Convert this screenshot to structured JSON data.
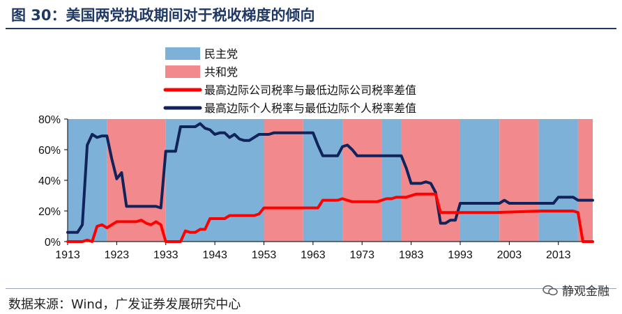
{
  "header": {
    "title": "图 30：美国两党执政期间对于税收梯度的倾向"
  },
  "footer": {
    "source": "数据来源：Wind，广发证券发展研究中心",
    "badge": "静观金融"
  },
  "colors": {
    "democrat": "#7eb1d8",
    "republican": "#f2898c",
    "corporate": "#ff0000",
    "personal": "#10235a",
    "title": "#1f3864"
  },
  "chart_data": {
    "type": "line",
    "title": "",
    "xlabel": "",
    "ylabel": "",
    "xlim": [
      1913,
      2020
    ],
    "ylim": [
      0,
      80
    ],
    "x_ticks": [
      1913,
      1923,
      1933,
      1943,
      1953,
      1963,
      1973,
      1983,
      1993,
      2003,
      2013
    ],
    "x_tick_labels": [
      "1913",
      "1923",
      "1933",
      "1943",
      "1953",
      "1963",
      "1973",
      "1983",
      "1993",
      "2003",
      "2013"
    ],
    "y_ticks": [
      0,
      20,
      40,
      60,
      80
    ],
    "y_tick_labels": [
      "0%",
      "20%",
      "40%",
      "60%",
      "80%"
    ],
    "legend": [
      {
        "label": "民主党",
        "type": "patch",
        "color": "#7eb1d8"
      },
      {
        "label": "共和党",
        "type": "patch",
        "color": "#f2898c"
      },
      {
        "label": "最高边际公司税率与最低边际公司税率差值",
        "type": "line",
        "color": "#ff0000"
      },
      {
        "label": "最高边际个人税率与最低边际个人税率差值",
        "type": "line",
        "color": "#10235a"
      }
    ],
    "periods": [
      {
        "party": "民主党",
        "start": 1913,
        "end": 1921
      },
      {
        "party": "共和党",
        "start": 1921,
        "end": 1933
      },
      {
        "party": "民主党",
        "start": 1933,
        "end": 1953
      },
      {
        "party": "共和党",
        "start": 1953,
        "end": 1961
      },
      {
        "party": "民主党",
        "start": 1961,
        "end": 1969
      },
      {
        "party": "共和党",
        "start": 1969,
        "end": 1977
      },
      {
        "party": "民主党",
        "start": 1977,
        "end": 1981
      },
      {
        "party": "共和党",
        "start": 1981,
        "end": 1993
      },
      {
        "party": "民主党",
        "start": 1993,
        "end": 2001
      },
      {
        "party": "共和党",
        "start": 2001,
        "end": 2009
      },
      {
        "party": "民主党",
        "start": 2009,
        "end": 2017
      },
      {
        "party": "共和党",
        "start": 2017,
        "end": 2020
      }
    ],
    "series": [
      {
        "name": "最高边际个人税率与最低边际个人税率差值",
        "color": "#10235a",
        "x": [
          1913,
          1915,
          1916,
          1917,
          1918,
          1919,
          1920,
          1921,
          1922,
          1923,
          1924,
          1925,
          1926,
          1929,
          1931,
          1932,
          1933,
          1935,
          1936,
          1937,
          1939,
          1940,
          1941,
          1942,
          1943,
          1944,
          1945,
          1946,
          1947,
          1948,
          1949,
          1950,
          1951,
          1952,
          1953,
          1954,
          1955,
          1957,
          1960,
          1963,
          1964,
          1965,
          1966,
          1967,
          1968,
          1969,
          1970,
          1971,
          1972,
          1975,
          1980,
          1981,
          1982,
          1983,
          1985,
          1986,
          1987,
          1988,
          1989,
          1990,
          1991,
          1992,
          1993,
          1995,
          2000,
          2001,
          2002,
          2003,
          2005,
          2010,
          2012,
          2013,
          2015,
          2016,
          2017,
          2018,
          2020
        ],
        "y": [
          6,
          6,
          11,
          63,
          70,
          68,
          69,
          69,
          54,
          41,
          45,
          23,
          23,
          23,
          23,
          22,
          59,
          59,
          75,
          75,
          75,
          77,
          74,
          73,
          70,
          71,
          71,
          68,
          70,
          67,
          66,
          66,
          68,
          70,
          70,
          70,
          71,
          71,
          71,
          71,
          63,
          56,
          56,
          56,
          56,
          62,
          63,
          60,
          56,
          56,
          56,
          56,
          48,
          38,
          38,
          39,
          38,
          32,
          12,
          12,
          14,
          14,
          25,
          25,
          25,
          25,
          27,
          25,
          25,
          25,
          25,
          29,
          29,
          29,
          27,
          27,
          27
        ]
      },
      {
        "name": "最高边际公司税率与最低边际公司税率差值",
        "color": "#ff0000",
        "x": [
          1913,
          1916,
          1917,
          1918,
          1919,
          1920,
          1921,
          1922,
          1923,
          1925,
          1927,
          1928,
          1929,
          1930,
          1931,
          1932,
          1933,
          1934,
          1936,
          1937,
          1938,
          1939,
          1940,
          1941,
          1942,
          1943,
          1945,
          1946,
          1950,
          1951,
          1952,
          1953,
          1960,
          1963,
          1964,
          1965,
          1968,
          1969,
          1970,
          1971,
          1972,
          1975,
          1976,
          1978,
          1979,
          1980,
          1982,
          1984,
          1986,
          1987,
          1988,
          1989,
          1990,
          1992,
          2000,
          2010,
          2016,
          2017,
          2018,
          2020
        ],
        "y": [
          0,
          0,
          1,
          0,
          10,
          11,
          9,
          11,
          13,
          13,
          13,
          14,
          12,
          11,
          13,
          11,
          0,
          0,
          0,
          7,
          6,
          6,
          8,
          8,
          15,
          15,
          15,
          17,
          17,
          17,
          18,
          22,
          22,
          22,
          22,
          27,
          27,
          28,
          27,
          26,
          26,
          26,
          26,
          28,
          28,
          29,
          29,
          31,
          31,
          31,
          31,
          19,
          19,
          19,
          19,
          20,
          20,
          19,
          0,
          0
        ]
      }
    ]
  }
}
